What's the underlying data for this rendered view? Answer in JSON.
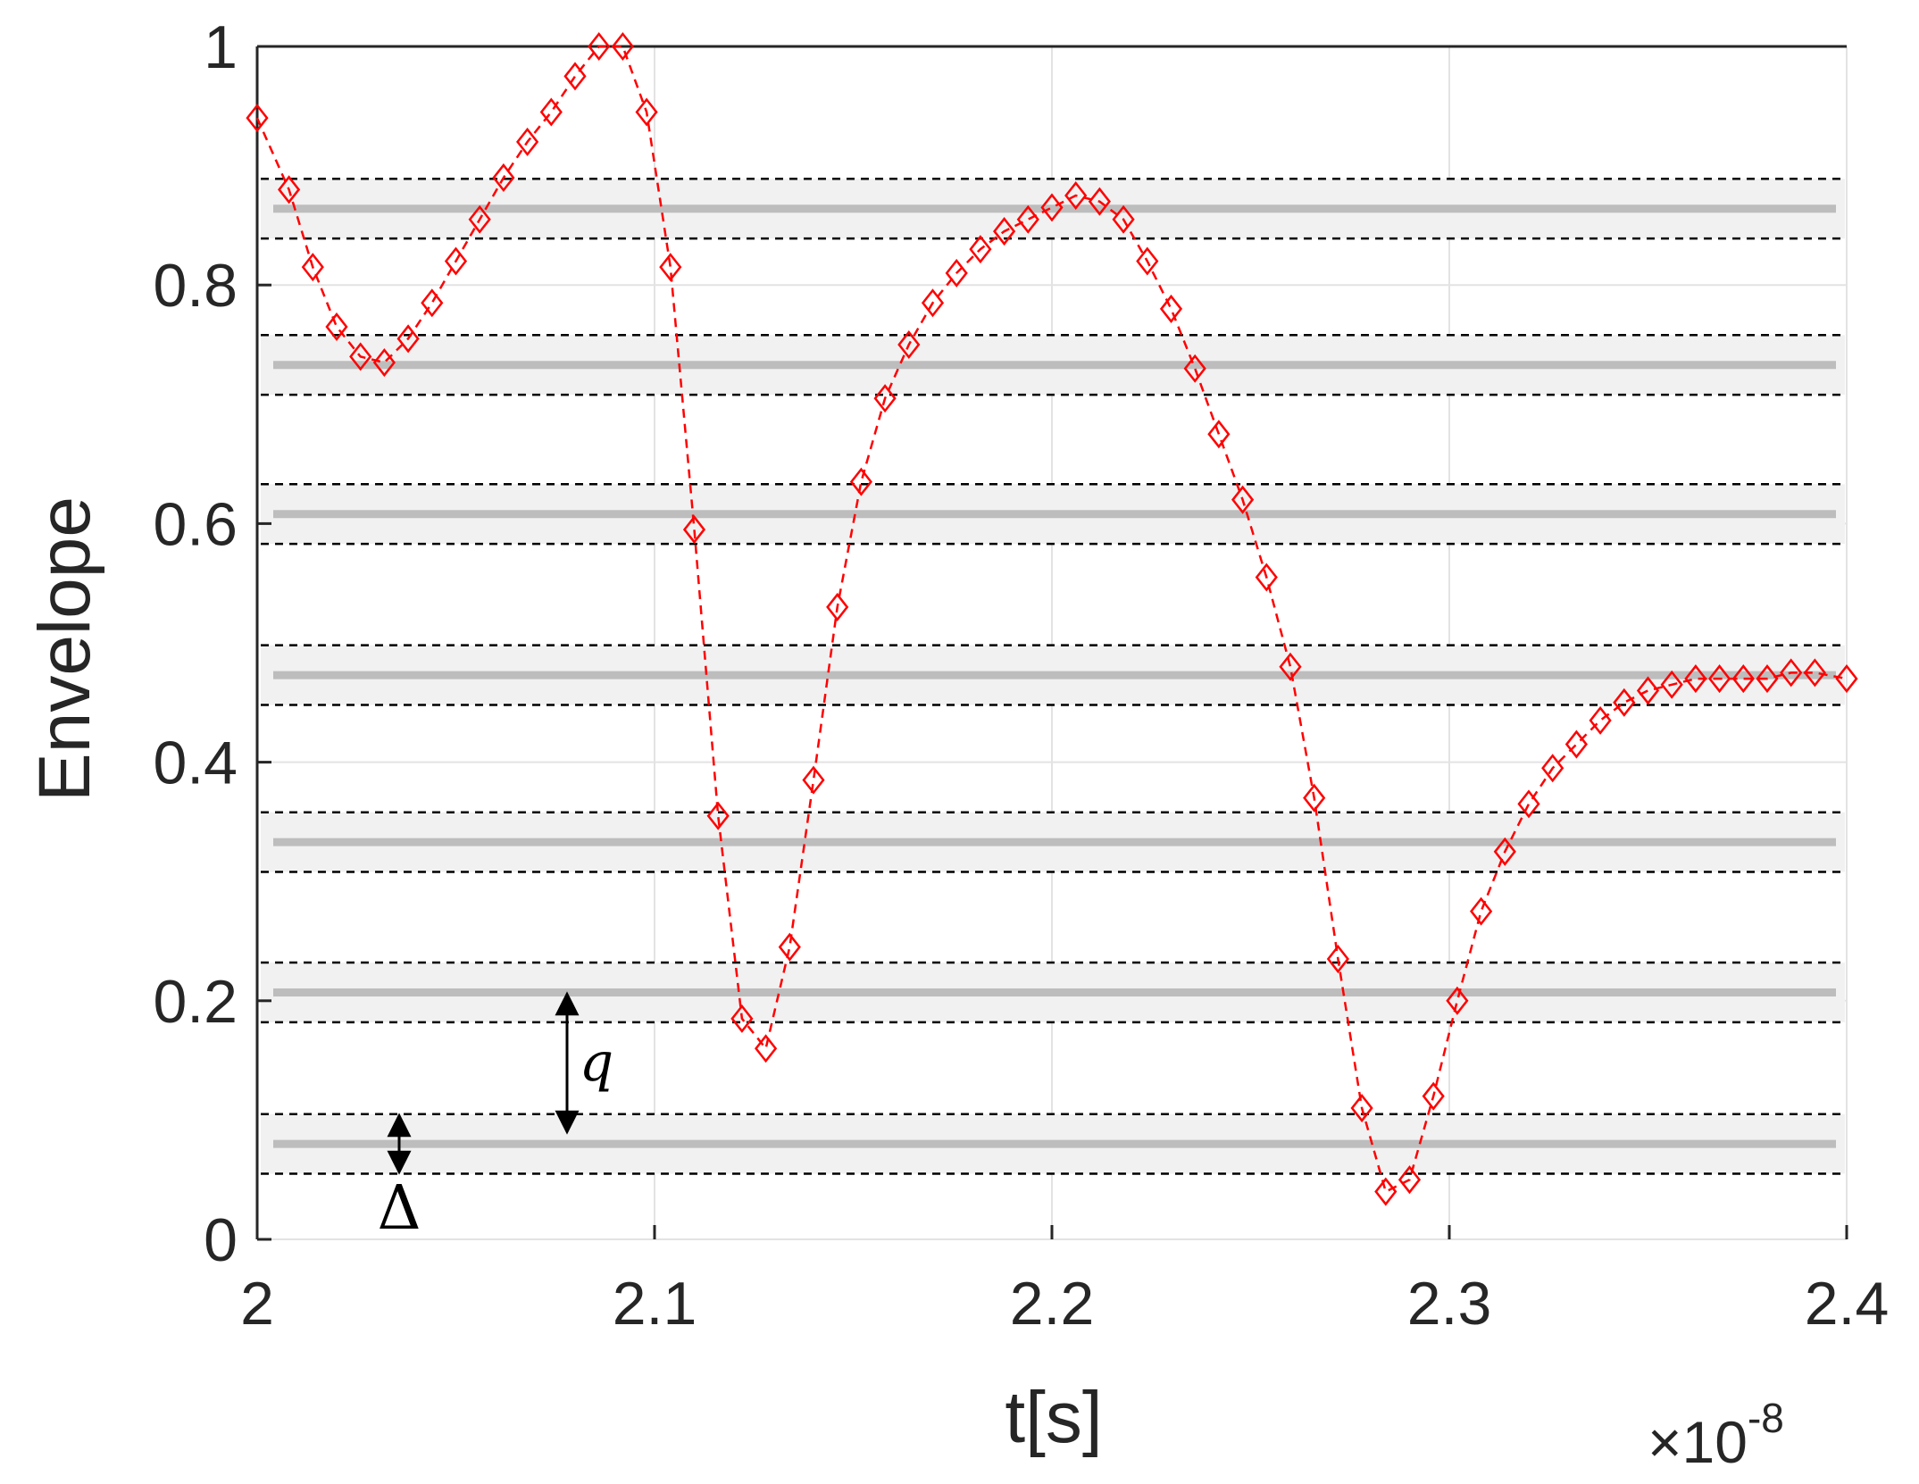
{
  "chart_data": {
    "type": "line",
    "xlabel": "t[s]",
    "ylabel": "Envelope",
    "x_multiplier": {
      "base": "×10",
      "exponent": "-8"
    },
    "xlim": [
      2.0,
      2.4
    ],
    "ylim": [
      0,
      1
    ],
    "xticks": [
      2.0,
      2.1,
      2.2,
      2.3,
      2.4
    ],
    "xtick_labels": [
      "2",
      "2.1",
      "2.2",
      "2.3",
      "2.4"
    ],
    "yticks": [
      0,
      0.2,
      0.4,
      0.6,
      0.8,
      1.0
    ],
    "ytick_labels": [
      "0",
      "0.2",
      "0.4",
      "0.6",
      "0.8",
      "1"
    ],
    "grid": true,
    "quantization_levels": [
      0.08,
      0.207,
      0.333,
      0.473,
      0.608,
      0.733,
      0.864
    ],
    "level_band_halfwidth": 0.025,
    "series": [
      {
        "marker": "diamond",
        "line_style": "dashed",
        "color": "#ff0000",
        "x": [
          2.0,
          2.008,
          2.014,
          2.02,
          2.026,
          2.032,
          2.038,
          2.044,
          2.05,
          2.056,
          2.062,
          2.068,
          2.074,
          2.08,
          2.086,
          2.092,
          2.098,
          2.104,
          2.11,
          2.116,
          2.122,
          2.128,
          2.134,
          2.14,
          2.146,
          2.152,
          2.158,
          2.164,
          2.17,
          2.176,
          2.182,
          2.188,
          2.194,
          2.2,
          2.206,
          2.212,
          2.218,
          2.224,
          2.23,
          2.236,
          2.242,
          2.248,
          2.254,
          2.26,
          2.266,
          2.272,
          2.278,
          2.284,
          2.29,
          2.296,
          2.302,
          2.308,
          2.314,
          2.32,
          2.326,
          2.332,
          2.338,
          2.344,
          2.35,
          2.356,
          2.362,
          2.368,
          2.374,
          2.38,
          2.386,
          2.392,
          2.4
        ],
        "y": [
          0.94,
          0.88,
          0.815,
          0.765,
          0.74,
          0.735,
          0.755,
          0.785,
          0.82,
          0.855,
          0.89,
          0.92,
          0.945,
          0.975,
          1.0,
          1.0,
          0.945,
          0.815,
          0.595,
          0.355,
          0.185,
          0.16,
          0.245,
          0.385,
          0.53,
          0.635,
          0.705,
          0.75,
          0.785,
          0.81,
          0.83,
          0.845,
          0.855,
          0.865,
          0.875,
          0.87,
          0.855,
          0.82,
          0.78,
          0.73,
          0.675,
          0.62,
          0.555,
          0.48,
          0.37,
          0.235,
          0.11,
          0.04,
          0.05,
          0.12,
          0.2,
          0.275,
          0.325,
          0.365,
          0.395,
          0.415,
          0.435,
          0.45,
          0.46,
          0.465,
          0.47,
          0.47,
          0.47,
          0.47,
          0.475,
          0.475,
          0.47
        ]
      }
    ],
    "annotations": [
      {
        "text": "q",
        "meaning": "spacing between adjacent levels"
      },
      {
        "text": "Δ",
        "meaning": "band half-width"
      }
    ]
  }
}
